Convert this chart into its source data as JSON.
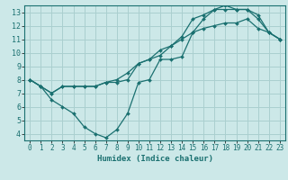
{
  "xlabel": "Humidex (Indice chaleur)",
  "xlim": [
    -0.5,
    23.5
  ],
  "ylim": [
    3.5,
    13.5
  ],
  "xticks": [
    0,
    1,
    2,
    3,
    4,
    5,
    6,
    7,
    8,
    9,
    10,
    11,
    12,
    13,
    14,
    15,
    16,
    17,
    18,
    19,
    20,
    21,
    22,
    23
  ],
  "yticks": [
    4,
    5,
    6,
    7,
    8,
    9,
    10,
    11,
    12,
    13
  ],
  "bg_color": "#cce8e8",
  "grid_color": "#aacfcf",
  "line_color": "#1a7070",
  "line1_x": [
    0,
    1,
    2,
    3,
    4,
    5,
    6,
    7,
    8,
    9,
    10,
    11,
    12,
    13,
    14,
    15,
    16,
    17,
    18,
    19,
    20,
    21,
    22,
    23
  ],
  "line1_y": [
    8.0,
    7.5,
    6.5,
    6.0,
    5.5,
    4.5,
    4.0,
    3.7,
    4.3,
    5.5,
    7.8,
    8.0,
    9.5,
    9.5,
    9.7,
    11.5,
    12.5,
    13.2,
    13.2,
    13.2,
    13.2,
    12.5,
    11.5,
    11.0
  ],
  "line2_x": [
    0,
    1,
    2,
    3,
    4,
    5,
    6,
    7,
    8,
    9,
    10,
    11,
    12,
    13,
    14,
    15,
    16,
    17,
    18,
    19,
    20,
    21,
    22,
    23
  ],
  "line2_y": [
    8.0,
    7.5,
    7.0,
    7.5,
    7.5,
    7.5,
    7.5,
    7.8,
    7.8,
    8.0,
    9.2,
    9.5,
    10.2,
    10.5,
    11.2,
    12.5,
    12.8,
    13.2,
    13.5,
    13.2,
    13.2,
    12.8,
    11.5,
    11.0
  ],
  "line3_x": [
    0,
    1,
    2,
    3,
    4,
    5,
    6,
    7,
    8,
    9,
    10,
    11,
    12,
    13,
    14,
    15,
    16,
    17,
    18,
    19,
    20,
    21,
    22,
    23
  ],
  "line3_y": [
    8.0,
    7.5,
    7.0,
    7.5,
    7.5,
    7.5,
    7.5,
    7.8,
    8.0,
    8.5,
    9.2,
    9.5,
    9.8,
    10.5,
    11.0,
    11.5,
    11.8,
    12.0,
    12.2,
    12.2,
    12.5,
    11.8,
    11.5,
    11.0
  ]
}
